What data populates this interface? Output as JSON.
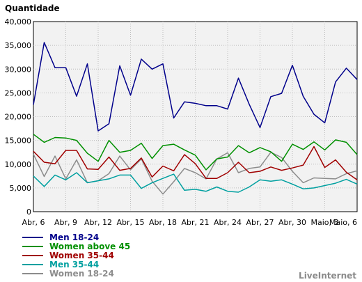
{
  "chart_data": {
    "type": "line",
    "ylabel": "Quantidade",
    "ylim": [
      0,
      40000
    ],
    "yticks": [
      0,
      5000,
      10000,
      15000,
      20000,
      25000,
      30000,
      35000,
      40000
    ],
    "ytick_labels": [
      "0",
      "5,000",
      "10,000",
      "15,000",
      "20,000",
      "25,000",
      "30,000",
      "35,000",
      "40,000"
    ],
    "xtick_labels": [
      "Abr, 6",
      "Abr, 9",
      "Abr, 12",
      "Abr, 15",
      "Abr, 18",
      "Abr, 21",
      "Abr, 24",
      "Abr, 27",
      "Abr, 30",
      "Maio, 3",
      "Maio, 6"
    ],
    "grid": true,
    "legend_position": "bottom-left",
    "series": [
      {
        "name": "Men 18-24",
        "color": "#00008b",
        "values": [
          22500,
          35600,
          30300,
          30300,
          24300,
          31100,
          17000,
          18500,
          30700,
          24500,
          32100,
          30000,
          31100,
          19700,
          23100,
          22800,
          22300,
          22300,
          21600,
          28100,
          22600,
          17700,
          24200,
          24900,
          30800,
          24300,
          20500,
          18700,
          27300,
          30200,
          27800
        ]
      },
      {
        "name": "Women above 45",
        "color": "#009000",
        "values": [
          16300,
          14600,
          15600,
          15500,
          15000,
          12300,
          10600,
          15000,
          12500,
          12900,
          14400,
          11200,
          13900,
          14200,
          13000,
          11900,
          8800,
          11100,
          11500,
          13900,
          12400,
          13500,
          12600,
          10600,
          14200,
          13100,
          14700,
          13000,
          15100,
          14600,
          12000
        ]
      },
      {
        "name": "Women 35-44",
        "color": "#a00000",
        "values": [
          12700,
          10400,
          10100,
          12900,
          12900,
          9000,
          8900,
          11500,
          8700,
          9100,
          11300,
          7300,
          9600,
          8600,
          12000,
          10100,
          7000,
          7000,
          8200,
          10400,
          8200,
          8500,
          9400,
          8700,
          9200,
          9800,
          13700,
          9300,
          10900,
          8300,
          6700
        ]
      },
      {
        "name": "Men 35-44",
        "color": "#00a0a0",
        "values": [
          7500,
          5300,
          7700,
          6700,
          8200,
          6100,
          6500,
          6900,
          7700,
          7700,
          4900,
          6100,
          7000,
          7900,
          4500,
          4700,
          4300,
          5200,
          4300,
          4100,
          5200,
          6700,
          6400,
          6700,
          5800,
          4800,
          5000,
          5500,
          6000,
          6800,
          5800
        ]
      },
      {
        "name": "Women 18-24",
        "color": "#8c8c8c",
        "values": [
          12100,
          7400,
          11700,
          6900,
          10900,
          6100,
          6500,
          8000,
          11700,
          8800,
          11100,
          6400,
          3700,
          6300,
          9100,
          8200,
          6900,
          11100,
          12400,
          8200,
          9100,
          9400,
          12500,
          11400,
          8500,
          6100,
          7100,
          7000,
          6900,
          8000,
          8600
        ]
      }
    ]
  },
  "footer": {
    "brand": "LiveInternet"
  }
}
